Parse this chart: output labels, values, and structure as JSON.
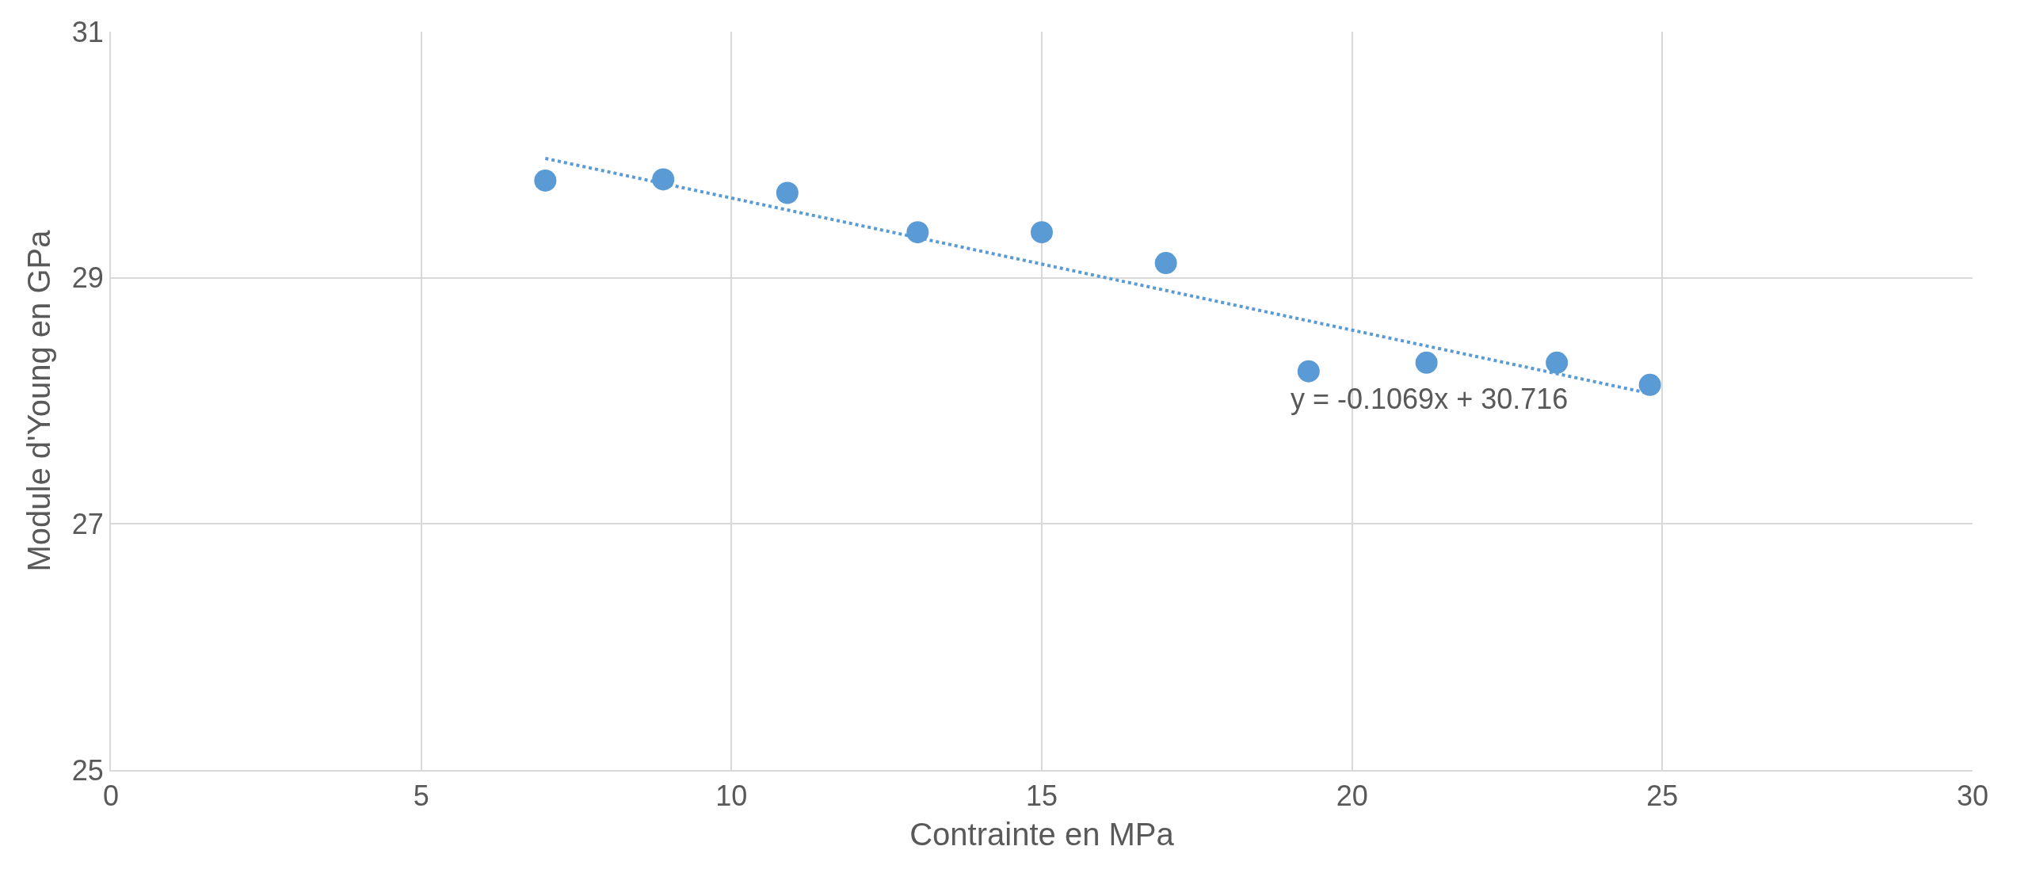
{
  "chart_data": {
    "type": "scatter",
    "xlabel": "Contrainte en MPa",
    "ylabel": "Module d'Young en GPa",
    "series": [
      {
        "color": "#5b9bd5",
        "marker": "circle",
        "x": [
          7.0,
          8.9,
          10.9,
          13.0,
          15.0,
          17.0,
          19.3,
          21.2,
          23.3,
          24.8
        ],
        "values": [
          29.79,
          29.8,
          29.69,
          29.37,
          29.37,
          29.12,
          28.24,
          28.31,
          28.31,
          28.13
        ]
      },
      {
        "type": "line",
        "color": "#5b9bd5",
        "marker": "none",
        "line_style": "dotted",
        "x": [
          7.0,
          24.8
        ],
        "values": [
          29.97,
          28.06
        ]
      }
    ],
    "annotations": [
      "y = -0.1069x + 30.716"
    ],
    "xlim": [
      0,
      30
    ],
    "xticks": [
      0,
      5,
      10,
      15,
      20,
      25,
      30
    ],
    "ylim": [
      25,
      31
    ],
    "yticks": [
      25,
      27,
      29,
      31
    ],
    "grid": true
  }
}
